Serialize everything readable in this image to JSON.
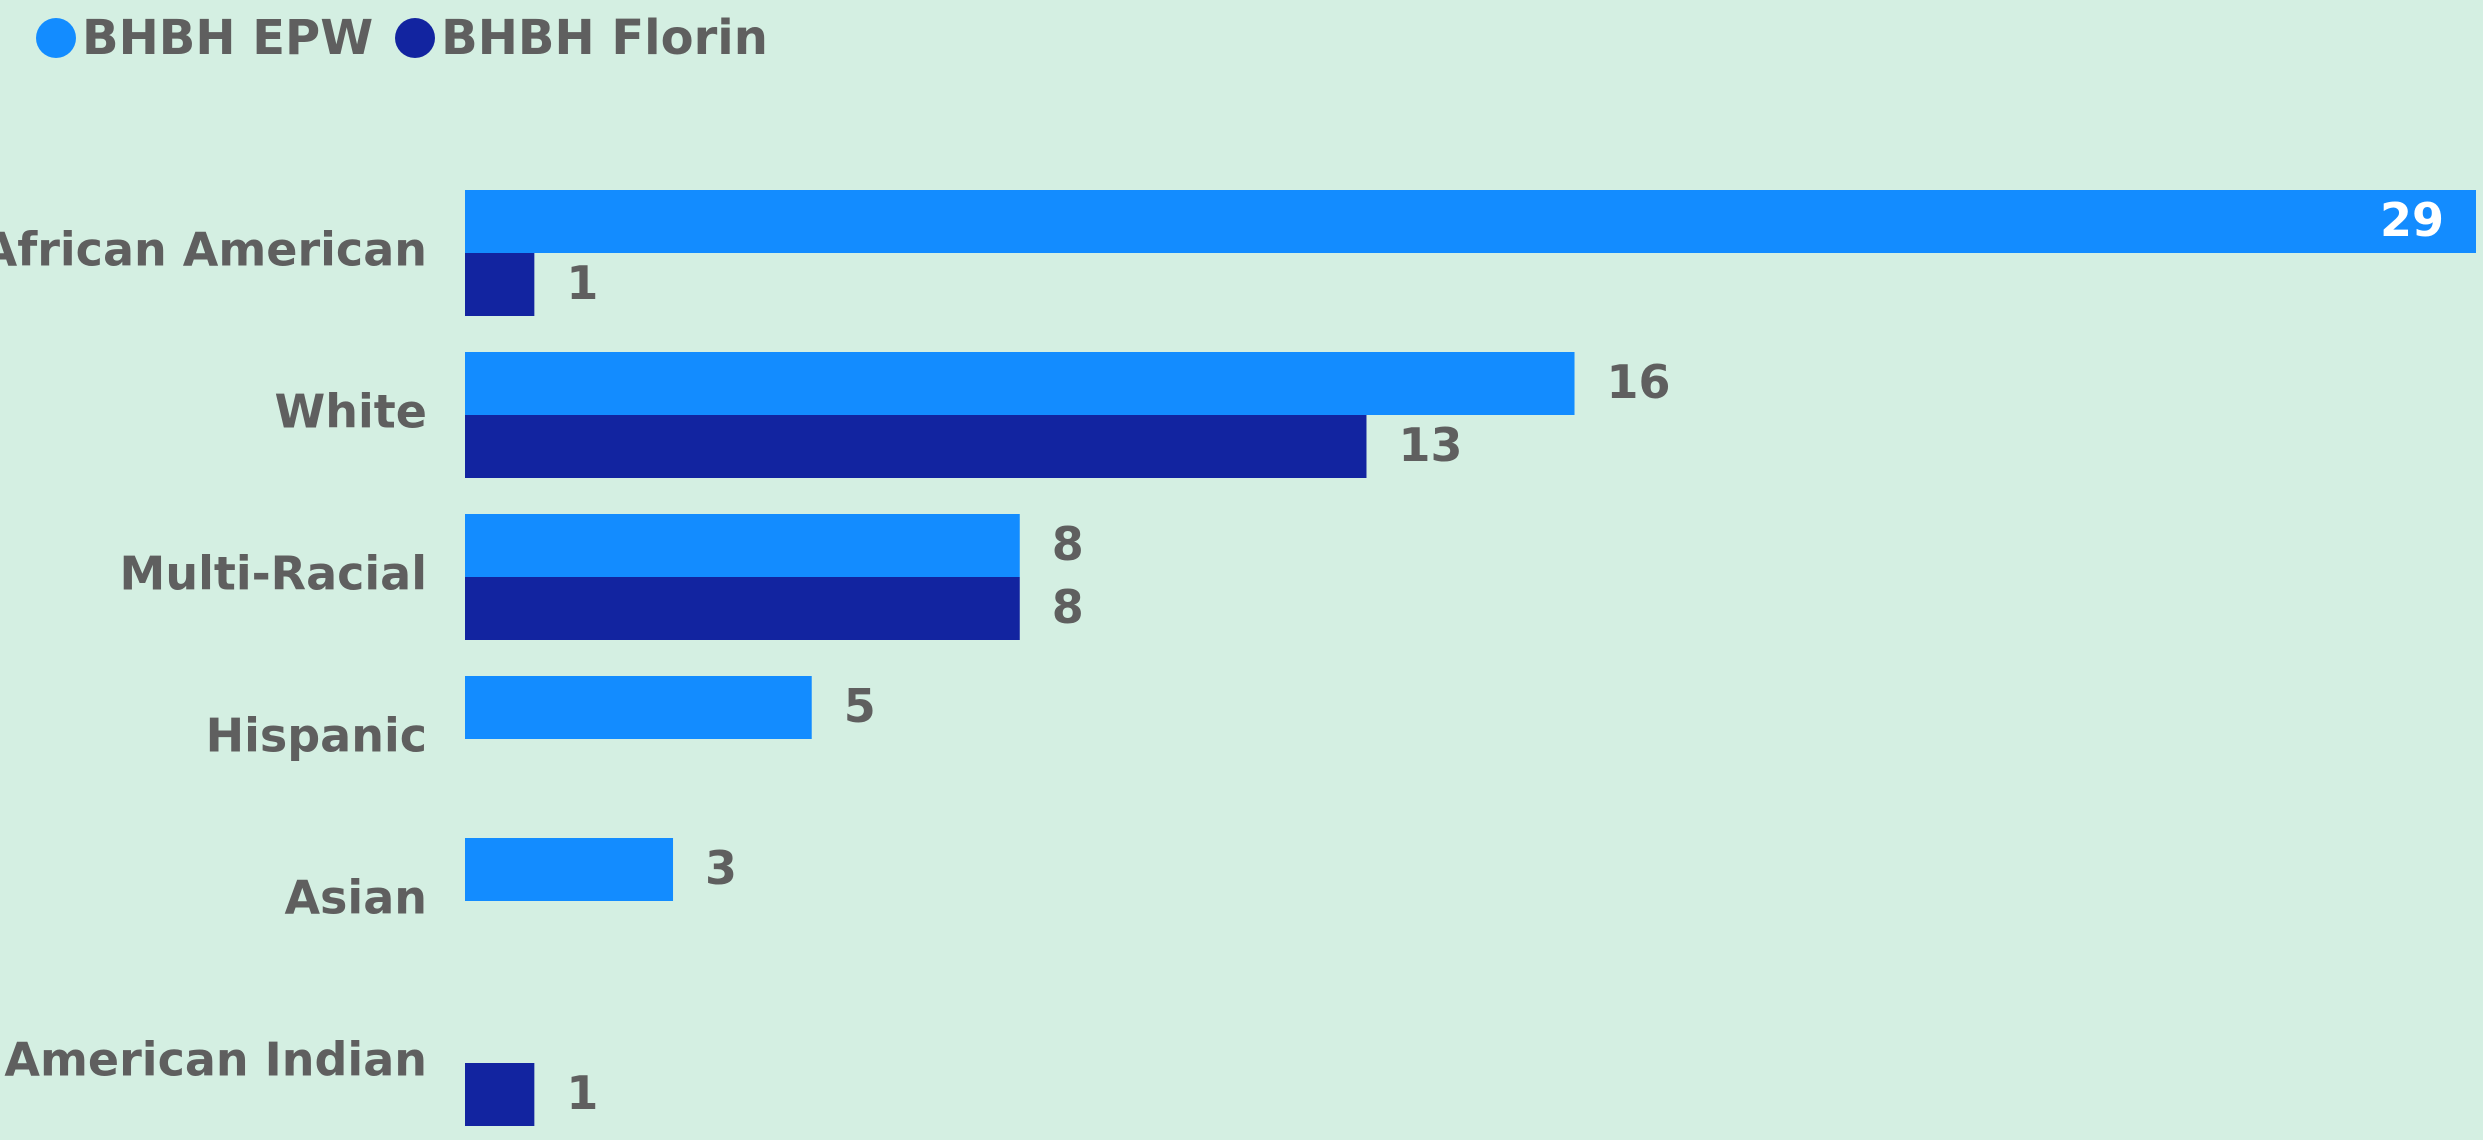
{
  "colors": {
    "background": "#d4efe2",
    "text": "#5f5f5f",
    "inside_label": "#ffffff"
  },
  "chart_data": {
    "type": "bar",
    "orientation": "horizontal",
    "categories": [
      "African American",
      "White",
      "Multi-Racial",
      "Hispanic",
      "Asian",
      "American Indian"
    ],
    "series": [
      {
        "name": "BHBH EPW",
        "color": "#138cff",
        "values": [
          29,
          16,
          8,
          5,
          3,
          null
        ]
      },
      {
        "name": "BHBH Florin",
        "color": "#1224a0",
        "values": [
          1,
          13,
          8,
          null,
          null,
          1
        ]
      }
    ],
    "xlim": [
      0,
      29
    ],
    "grid": false,
    "legend": "top-left"
  }
}
